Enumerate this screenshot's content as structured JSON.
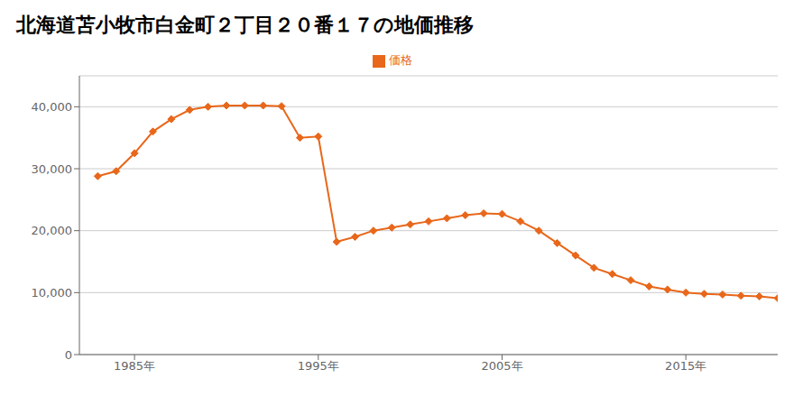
{
  "chart_data": {
    "type": "line",
    "title": "北海道苫小牧市白金町２丁目２０番１７の地価推移",
    "x": [
      1983,
      1984,
      1985,
      1986,
      1987,
      1988,
      1989,
      1990,
      1991,
      1992,
      1993,
      1994,
      1995,
      1996,
      1997,
      1998,
      1999,
      2000,
      2001,
      2002,
      2003,
      2004,
      2005,
      2006,
      2007,
      2008,
      2009,
      2010,
      2011,
      2012,
      2013,
      2014,
      2015,
      2016,
      2017,
      2018,
      2019,
      2020
    ],
    "series": [
      {
        "name": "価格",
        "color": "#e8671a",
        "marker": "diamond",
        "values": [
          28800,
          29600,
          32500,
          36000,
          38000,
          39500,
          40000,
          40200,
          40200,
          40200,
          40100,
          35000,
          35200,
          18200,
          19000,
          20000,
          20500,
          21000,
          21500,
          22000,
          22500,
          22800,
          22700,
          21500,
          20000,
          18000,
          16000,
          14000,
          13000,
          12000,
          11000,
          10500,
          10000,
          9800,
          9700,
          9500,
          9400,
          9100
        ]
      }
    ],
    "xlim": [
      1982,
      2020
    ],
    "ylim": [
      0,
      45000
    ],
    "xticks": [
      {
        "value": 1985,
        "label": "1985年"
      },
      {
        "value": 1995,
        "label": "1995年"
      },
      {
        "value": 2005,
        "label": "2005年"
      },
      {
        "value": 2015,
        "label": "2015年"
      }
    ],
    "yticks": [
      0,
      {
        "value": 10000,
        "label": "10,000"
      },
      {
        "value": 20000,
        "label": "20,000"
      },
      {
        "value": 30000,
        "label": "30,000"
      },
      {
        "value": 40000,
        "label": "40,000"
      }
    ],
    "grid": true,
    "legend": "top"
  }
}
